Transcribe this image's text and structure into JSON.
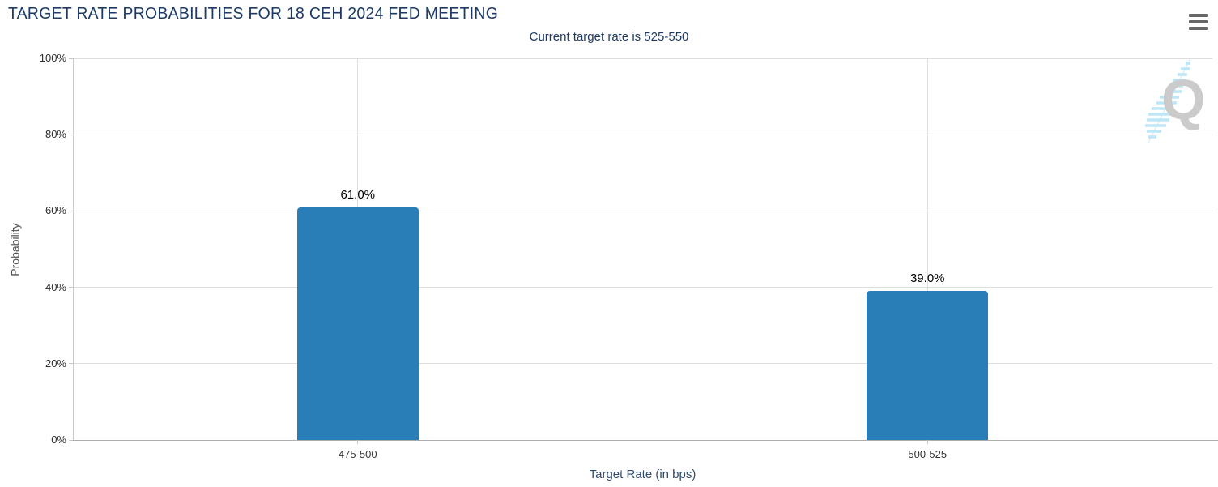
{
  "header": {
    "title": "TARGET RATE PROBABILITIES FOR 18 CEH 2024 FED MEETING",
    "menu_icon": "hamburger-icon"
  },
  "chart_data": {
    "type": "bar",
    "title": "TARGET RATE PROBABILITIES FOR 18 CEH 2024 FED MEETING",
    "subtitle": "Current target rate is 525-550",
    "categories": [
      "475-500",
      "500-525"
    ],
    "values": [
      61.0,
      39.0
    ],
    "value_labels": [
      "61.0%",
      "39.0%"
    ],
    "xlabel": "Target Rate (in bps)",
    "ylabel": "Probability",
    "ylim": [
      0,
      100
    ],
    "ytick_labels": [
      "0%",
      "20%",
      "40%",
      "60%",
      "80%",
      "100%"
    ],
    "grid": true,
    "legend": "none",
    "bar_color": "#2a7eb8"
  },
  "watermark": {
    "letter": "Q"
  },
  "colors": {
    "title_text": "#1e3a66",
    "subtitle_text": "#1e3a66",
    "x_axis_title_text": "#2e4b6e",
    "y_axis_title_text": "#555555",
    "tick_label_text": "#2e2e2e",
    "bar": "#2a7eb8",
    "gridline": "#dedede",
    "axis_line": "#adadad",
    "data_label_text": "#000000",
    "menu_icon": "#666666",
    "watermark_gray": "#cbcbcb",
    "watermark_blue": "#bfe6f7"
  }
}
